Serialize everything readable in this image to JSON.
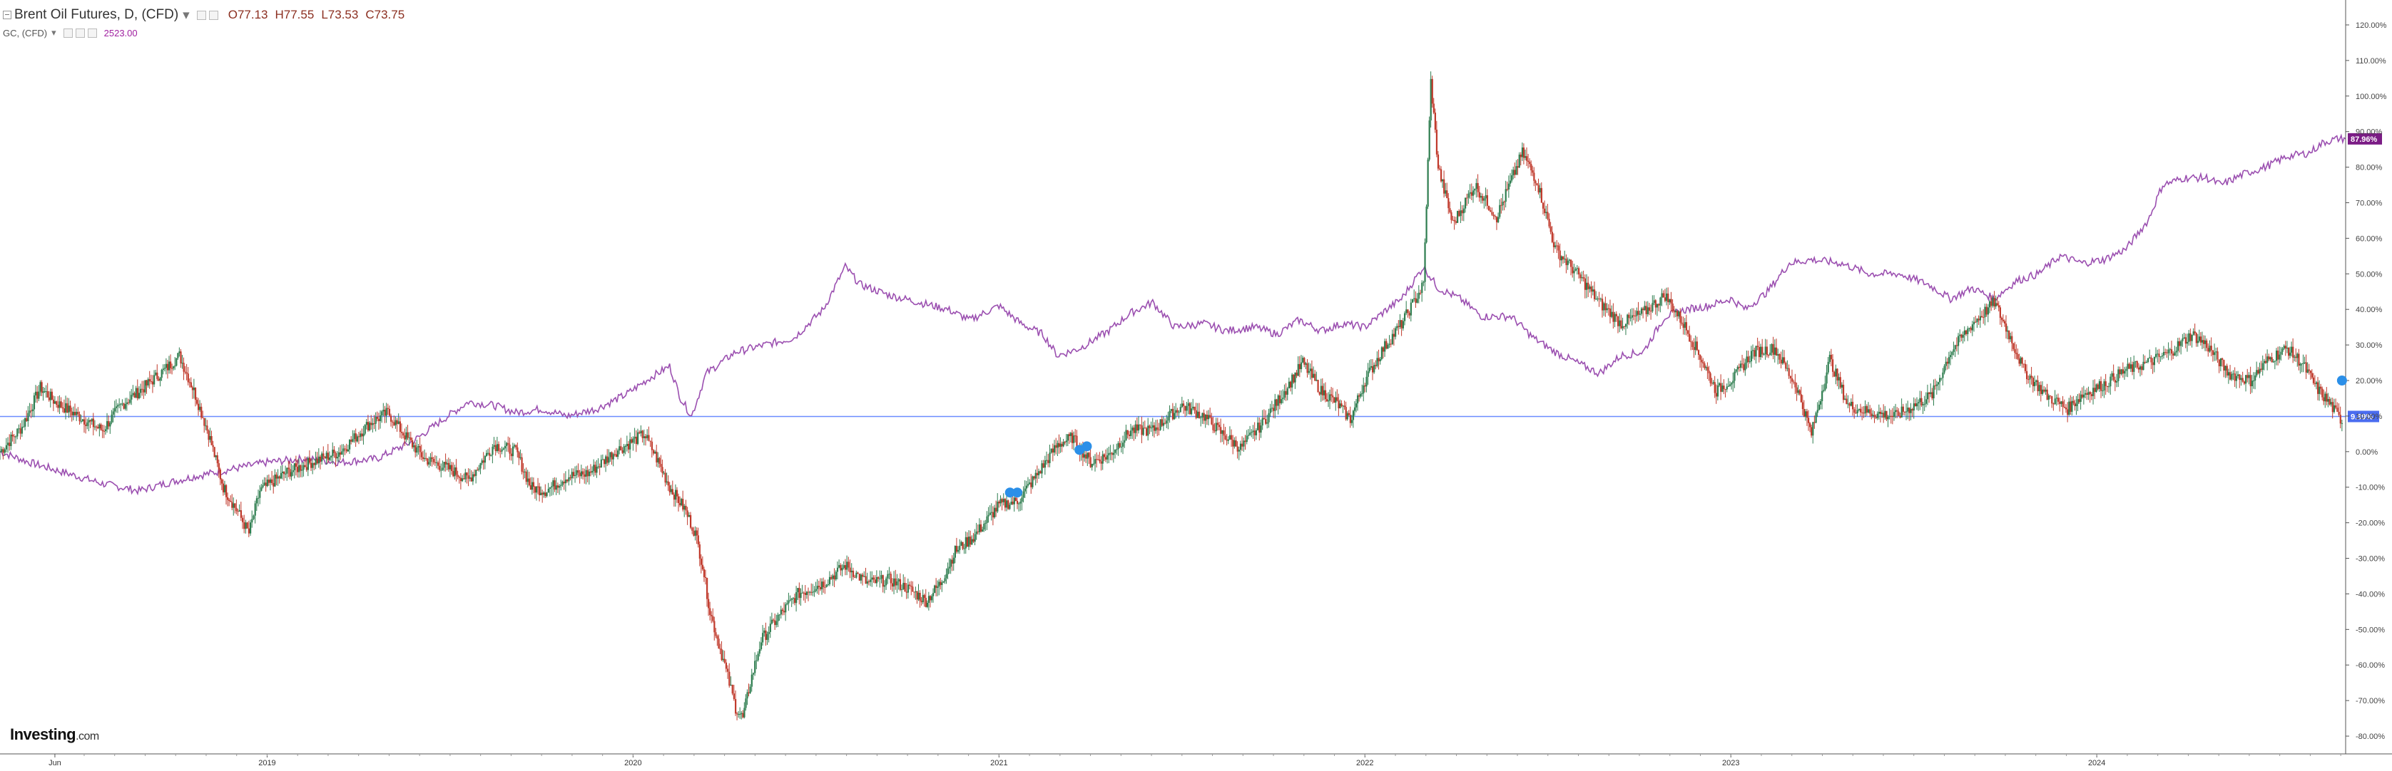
{
  "legend": {
    "symbol": "Brent Oil Futures, D, (CFD)",
    "open_label": "O",
    "open": "77.13",
    "high_label": "H",
    "high": "77.55",
    "low_label": "L",
    "low": "73.53",
    "close_label": "C",
    "close": "73.75",
    "compare_symbol": "GC, (CFD)",
    "compare_value": "2523.00"
  },
  "watermark": {
    "brand": "Investing",
    "suffix": ".com"
  },
  "chart_data": {
    "type": "line",
    "y_axis": {
      "format": "percent",
      "range": [
        -85,
        123
      ],
      "ticks": [
        120,
        110,
        100,
        90,
        80,
        70,
        60,
        50,
        40,
        30,
        20,
        10,
        0,
        -10,
        -20,
        -30,
        -40,
        -50,
        -60,
        -70,
        -80
      ],
      "tick_labels": [
        "120.00%",
        "110.00%",
        "100.00%",
        "90.00%",
        "80.00%",
        "70.00%",
        "60.00%",
        "50.00%",
        "40.00%",
        "30.00%",
        "20.00%",
        "10.00%",
        "0.00%",
        "-10.00%",
        "-20.00%",
        "-30.00%",
        "-40.00%",
        "-50.00%",
        "-60.00%",
        "-70.00%",
        "-80.00%"
      ]
    },
    "x_axis": {
      "labels": [
        {
          "label": "Jun",
          "x": 2018.42
        },
        {
          "label": "2019",
          "x": 2019.0
        },
        {
          "label": "2020",
          "x": 2020.0
        },
        {
          "label": "2021",
          "x": 2021.0
        },
        {
          "label": "2022",
          "x": 2022.0
        },
        {
          "label": "2023",
          "x": 2023.0
        },
        {
          "label": "2024",
          "x": 2024.0
        }
      ],
      "range": [
        2018.27,
        2024.68
      ]
    },
    "baseline": {
      "value": 9.89,
      "label": "9.89%",
      "color": "#6b8cff"
    },
    "series": [
      {
        "symbol": "Brent Oil Futures",
        "style": "candlestick",
        "up_color": "#2e7d4f",
        "down_color": "#c0392b",
        "last_label": "",
        "points": [
          [
            2018.27,
            0
          ],
          [
            2018.33,
            7
          ],
          [
            2018.38,
            18
          ],
          [
            2018.42,
            14
          ],
          [
            2018.5,
            9
          ],
          [
            2018.55,
            6
          ],
          [
            2018.6,
            13
          ],
          [
            2018.65,
            17
          ],
          [
            2018.72,
            23
          ],
          [
            2018.76,
            27
          ],
          [
            2018.8,
            17
          ],
          [
            2018.84,
            5
          ],
          [
            2018.88,
            -10
          ],
          [
            2018.92,
            -17
          ],
          [
            2018.95,
            -23
          ],
          [
            2018.98,
            -11
          ],
          [
            2019.05,
            -6
          ],
          [
            2019.12,
            -3
          ],
          [
            2019.2,
            0
          ],
          [
            2019.28,
            8
          ],
          [
            2019.33,
            11
          ],
          [
            2019.38,
            4
          ],
          [
            2019.43,
            -2
          ],
          [
            2019.5,
            -5
          ],
          [
            2019.55,
            -8
          ],
          [
            2019.62,
            2
          ],
          [
            2019.68,
            0
          ],
          [
            2019.72,
            -10
          ],
          [
            2019.76,
            -11
          ],
          [
            2019.82,
            -7
          ],
          [
            2019.88,
            -6
          ],
          [
            2019.95,
            0
          ],
          [
            2020.0,
            3
          ],
          [
            2020.03,
            5
          ],
          [
            2020.06,
            -1
          ],
          [
            2020.1,
            -10
          ],
          [
            2020.14,
            -16
          ],
          [
            2020.17,
            -23
          ],
          [
            2020.19,
            -32
          ],
          [
            2020.21,
            -45
          ],
          [
            2020.25,
            -60
          ],
          [
            2020.28,
            -72
          ],
          [
            2020.3,
            -75
          ],
          [
            2020.32,
            -65
          ],
          [
            2020.35,
            -53
          ],
          [
            2020.4,
            -46
          ],
          [
            2020.45,
            -40
          ],
          [
            2020.52,
            -37
          ],
          [
            2020.58,
            -32
          ],
          [
            2020.64,
            -37
          ],
          [
            2020.7,
            -36
          ],
          [
            2020.76,
            -39
          ],
          [
            2020.8,
            -42
          ],
          [
            2020.84,
            -37
          ],
          [
            2020.88,
            -28
          ],
          [
            2020.93,
            -24
          ],
          [
            2021.0,
            -15
          ],
          [
            2021.05,
            -14
          ],
          [
            2021.1,
            -7
          ],
          [
            2021.16,
            2
          ],
          [
            2021.2,
            4
          ],
          [
            2021.25,
            -3
          ],
          [
            2021.3,
            -1
          ],
          [
            2021.36,
            6
          ],
          [
            2021.42,
            6
          ],
          [
            2021.5,
            13
          ],
          [
            2021.56,
            10
          ],
          [
            2021.61,
            5
          ],
          [
            2021.66,
            1
          ],
          [
            2021.72,
            8
          ],
          [
            2021.78,
            17
          ],
          [
            2021.83,
            25
          ],
          [
            2021.88,
            17
          ],
          [
            2021.92,
            14
          ],
          [
            2021.96,
            9
          ],
          [
            2022.0,
            20
          ],
          [
            2022.05,
            29
          ],
          [
            2022.1,
            36
          ],
          [
            2022.16,
            47
          ],
          [
            2022.18,
            104
          ],
          [
            2022.2,
            80
          ],
          [
            2022.24,
            64
          ],
          [
            2022.3,
            75
          ],
          [
            2022.36,
            66
          ],
          [
            2022.43,
            84
          ],
          [
            2022.47,
            76
          ],
          [
            2022.52,
            57
          ],
          [
            2022.58,
            50
          ],
          [
            2022.64,
            42
          ],
          [
            2022.7,
            36
          ],
          [
            2022.76,
            39
          ],
          [
            2022.82,
            44
          ],
          [
            2022.87,
            36
          ],
          [
            2022.92,
            26
          ],
          [
            2022.96,
            17
          ],
          [
            2023.01,
            21
          ],
          [
            2023.06,
            28
          ],
          [
            2023.12,
            29
          ],
          [
            2023.18,
            18
          ],
          [
            2023.22,
            5
          ],
          [
            2023.27,
            26
          ],
          [
            2023.32,
            13
          ],
          [
            2023.38,
            11
          ],
          [
            2023.45,
            10
          ],
          [
            2023.5,
            13
          ],
          [
            2023.55,
            16
          ],
          [
            2023.6,
            28
          ],
          [
            2023.66,
            36
          ],
          [
            2023.72,
            42
          ],
          [
            2023.76,
            33
          ],
          [
            2023.8,
            23
          ],
          [
            2023.86,
            16
          ],
          [
            2023.92,
            12
          ],
          [
            2023.96,
            16
          ],
          [
            2024.02,
            19
          ],
          [
            2024.08,
            23
          ],
          [
            2024.14,
            25
          ],
          [
            2024.2,
            28
          ],
          [
            2024.26,
            33
          ],
          [
            2024.3,
            30
          ],
          [
            2024.36,
            22
          ],
          [
            2024.42,
            20
          ],
          [
            2024.47,
            26
          ],
          [
            2024.52,
            29
          ],
          [
            2024.56,
            25
          ],
          [
            2024.6,
            18
          ],
          [
            2024.64,
            13
          ],
          [
            2024.67,
            8
          ]
        ]
      },
      {
        "symbol": "GC, (CFD)",
        "style": "line",
        "color": "#9b4fb0",
        "last_label": "87.96%",
        "points": [
          [
            2018.27,
            0
          ],
          [
            2018.35,
            -3
          ],
          [
            2018.45,
            -6
          ],
          [
            2018.55,
            -9
          ],
          [
            2018.65,
            -11
          ],
          [
            2018.72,
            -9
          ],
          [
            2018.8,
            -7
          ],
          [
            2018.9,
            -5
          ],
          [
            2019.0,
            -3
          ],
          [
            2019.1,
            -2
          ],
          [
            2019.2,
            -3
          ],
          [
            2019.3,
            -2
          ],
          [
            2019.4,
            3
          ],
          [
            2019.48,
            9
          ],
          [
            2019.55,
            14
          ],
          [
            2019.62,
            13
          ],
          [
            2019.68,
            11
          ],
          [
            2019.75,
            12
          ],
          [
            2019.82,
            10
          ],
          [
            2019.9,
            12
          ],
          [
            2019.98,
            16
          ],
          [
            2020.05,
            21
          ],
          [
            2020.1,
            24
          ],
          [
            2020.13,
            15
          ],
          [
            2020.16,
            10
          ],
          [
            2020.2,
            22
          ],
          [
            2020.28,
            28
          ],
          [
            2020.36,
            30
          ],
          [
            2020.44,
            32
          ],
          [
            2020.52,
            40
          ],
          [
            2020.58,
            52
          ],
          [
            2020.62,
            47
          ],
          [
            2020.7,
            44
          ],
          [
            2020.78,
            42
          ],
          [
            2020.86,
            40
          ],
          [
            2020.92,
            37
          ],
          [
            2021.0,
            41
          ],
          [
            2021.06,
            36
          ],
          [
            2021.12,
            33
          ],
          [
            2021.16,
            27
          ],
          [
            2021.22,
            29
          ],
          [
            2021.3,
            34
          ],
          [
            2021.36,
            39
          ],
          [
            2021.42,
            42
          ],
          [
            2021.48,
            35
          ],
          [
            2021.56,
            36
          ],
          [
            2021.62,
            34
          ],
          [
            2021.7,
            35
          ],
          [
            2021.76,
            33
          ],
          [
            2021.82,
            37
          ],
          [
            2021.88,
            34
          ],
          [
            2021.94,
            36
          ],
          [
            2022.0,
            35
          ],
          [
            2022.06,
            40
          ],
          [
            2022.1,
            43
          ],
          [
            2022.16,
            52
          ],
          [
            2022.2,
            46
          ],
          [
            2022.26,
            43
          ],
          [
            2022.32,
            38
          ],
          [
            2022.4,
            38
          ],
          [
            2022.46,
            32
          ],
          [
            2022.52,
            28
          ],
          [
            2022.58,
            25
          ],
          [
            2022.64,
            22
          ],
          [
            2022.7,
            27
          ],
          [
            2022.76,
            28
          ],
          [
            2022.82,
            38
          ],
          [
            2022.88,
            40
          ],
          [
            2022.94,
            41
          ],
          [
            2023.0,
            43
          ],
          [
            2023.04,
            40
          ],
          [
            2023.1,
            45
          ],
          [
            2023.16,
            53
          ],
          [
            2023.22,
            54
          ],
          [
            2023.3,
            53
          ],
          [
            2023.38,
            50
          ],
          [
            2023.46,
            50
          ],
          [
            2023.54,
            47
          ],
          [
            2023.6,
            43
          ],
          [
            2023.66,
            46
          ],
          [
            2023.72,
            43
          ],
          [
            2023.78,
            48
          ],
          [
            2023.84,
            50
          ],
          [
            2023.9,
            55
          ],
          [
            2023.96,
            53
          ],
          [
            2024.02,
            54
          ],
          [
            2024.08,
            57
          ],
          [
            2024.14,
            65
          ],
          [
            2024.18,
            75
          ],
          [
            2024.24,
            77
          ],
          [
            2024.3,
            77
          ],
          [
            2024.34,
            75
          ],
          [
            2024.4,
            78
          ],
          [
            2024.46,
            80
          ],
          [
            2024.52,
            83
          ],
          [
            2024.58,
            84
          ],
          [
            2024.62,
            87
          ],
          [
            2024.66,
            88
          ],
          [
            2024.68,
            87.96
          ]
        ]
      }
    ]
  }
}
